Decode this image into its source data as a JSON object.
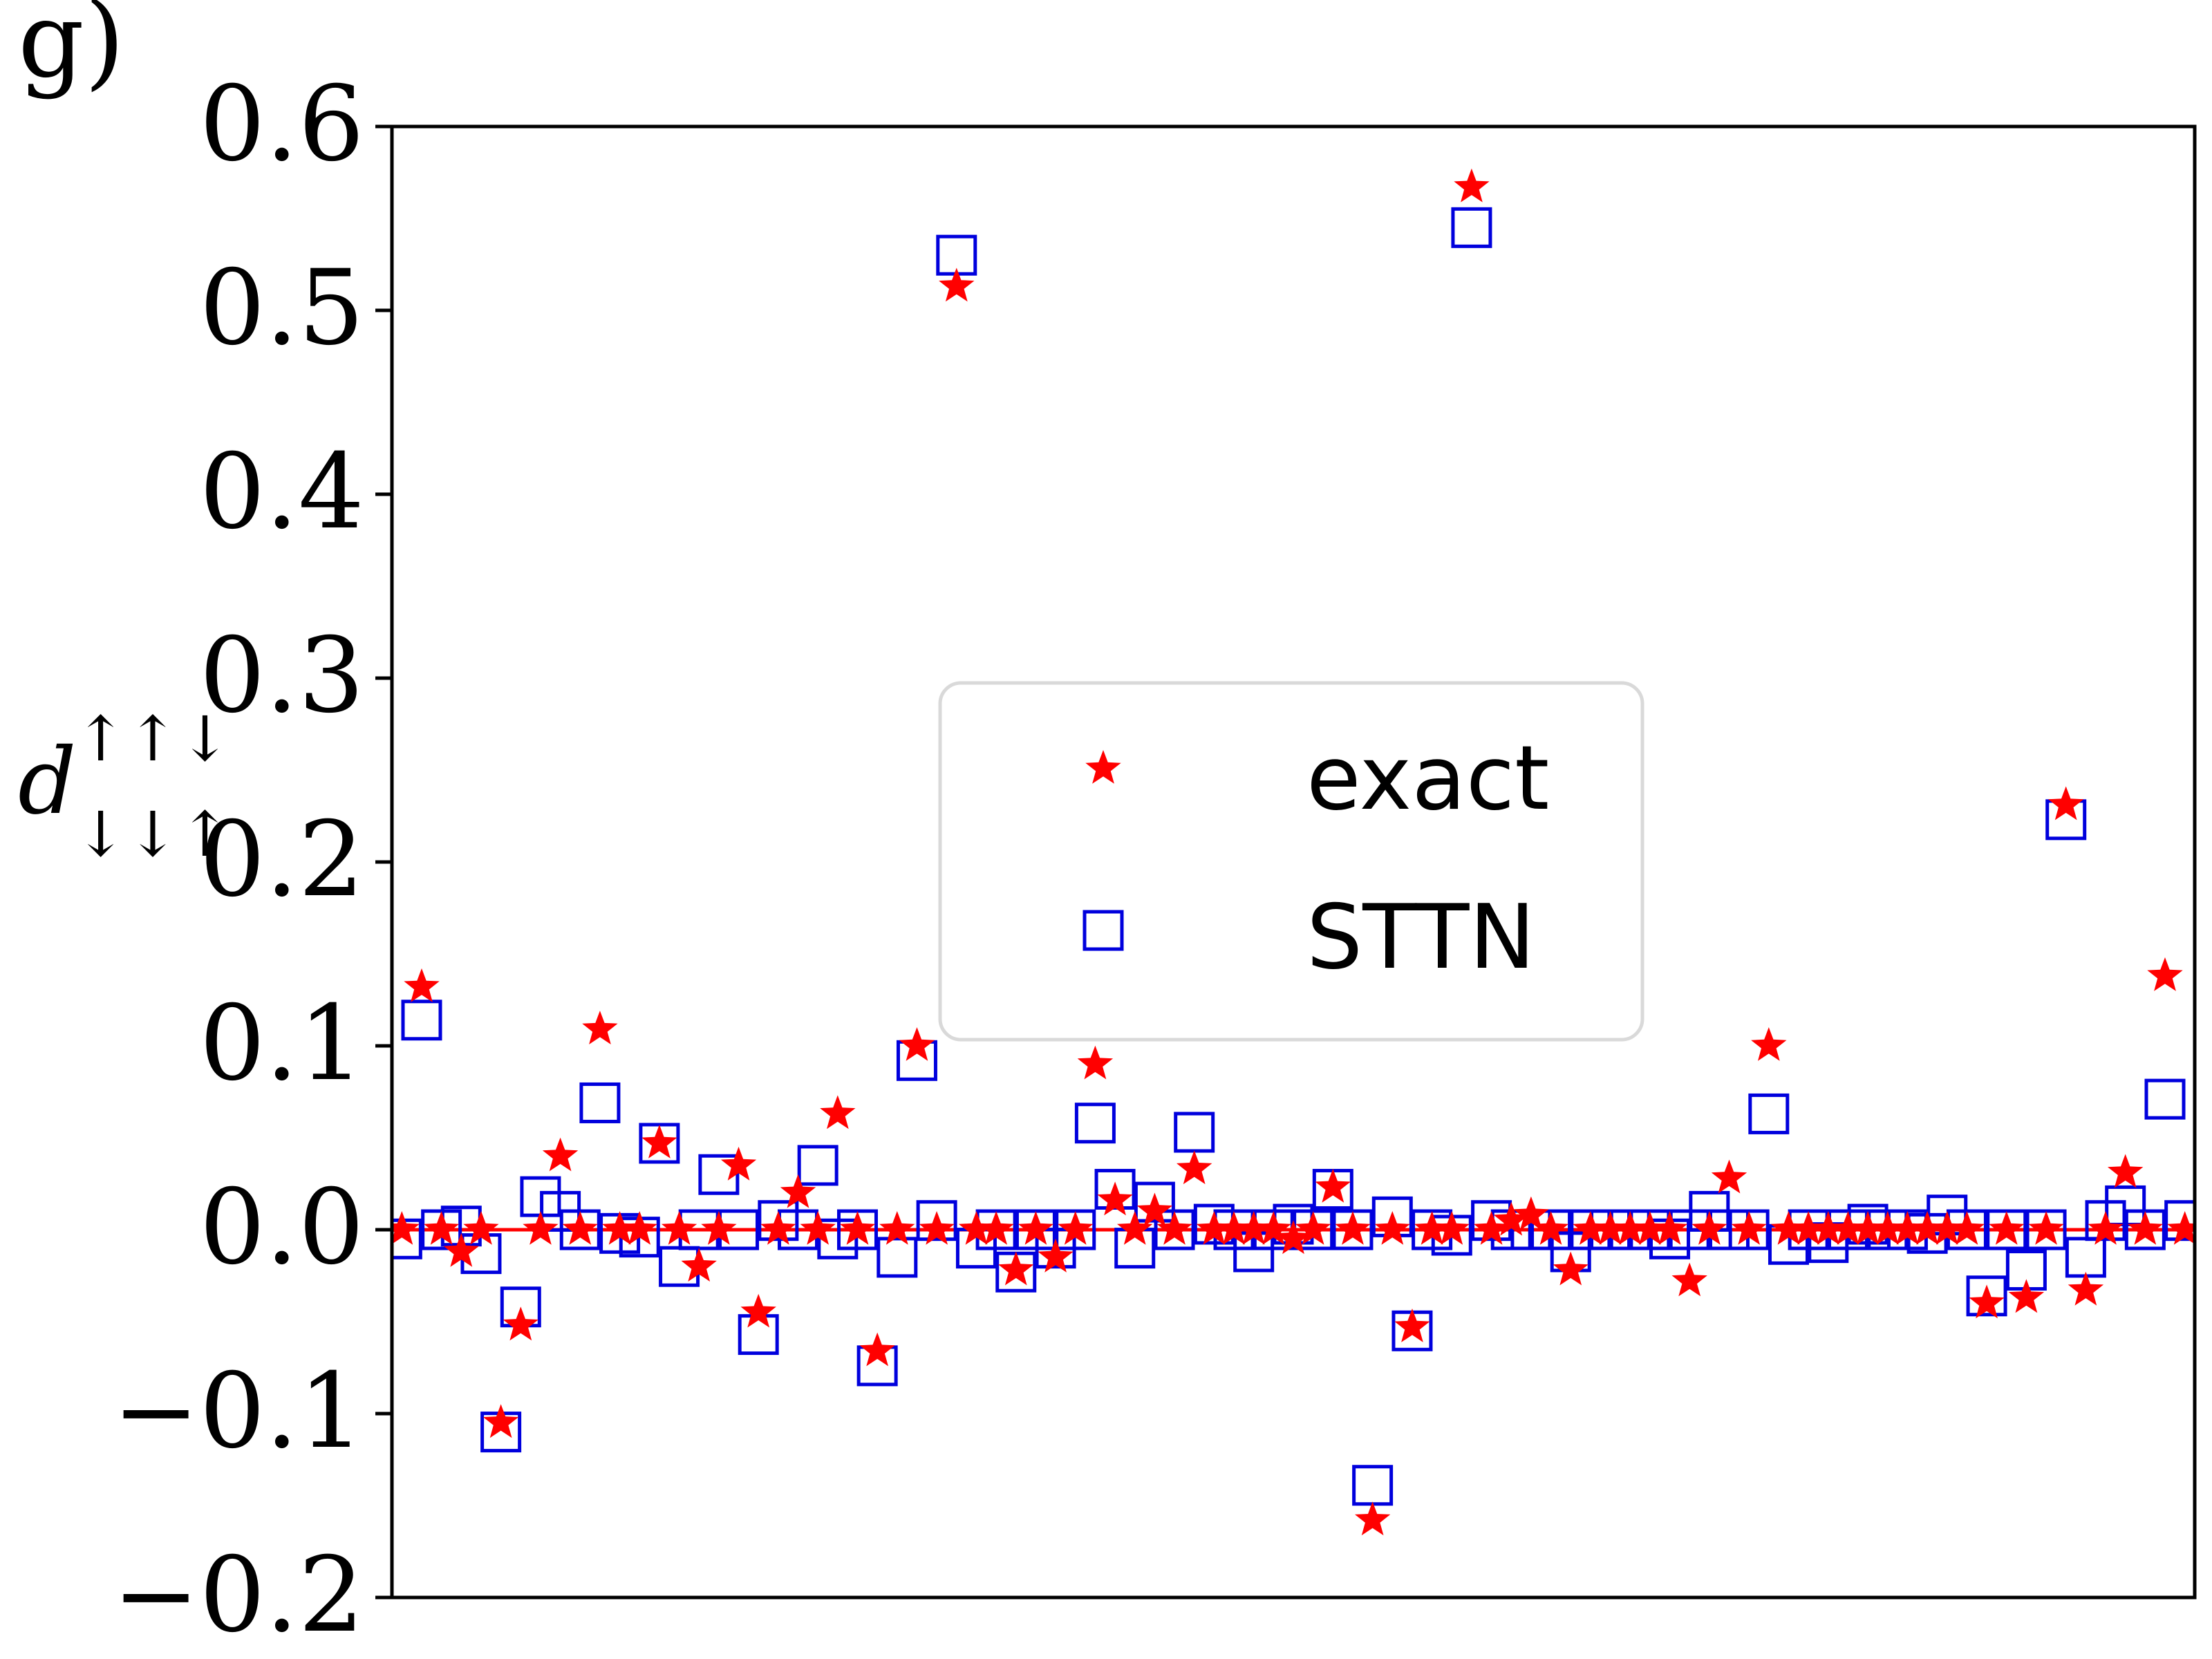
{
  "panel_label": "g)",
  "chart_data": {
    "type": "scatter",
    "title": "",
    "xlabel": "",
    "ylabel": "d",
    "ylabel_sup": "↑↑↓",
    "ylabel_sub": "↓↓↑",
    "ylim": [
      -0.2,
      0.6
    ],
    "yticks": [
      -0.2,
      -0.1,
      0.0,
      0.1,
      0.2,
      0.3,
      0.4,
      0.5,
      0.6
    ],
    "ytick_labels": [
      "−0.2",
      "−0.1",
      "0.0",
      "0.1",
      "0.2",
      "0.3",
      "0.4",
      "0.5",
      "0.6"
    ],
    "xlim": [
      -0.5,
      90.5
    ],
    "grid": false,
    "legend_position": "center",
    "x": [
      0,
      1,
      2,
      3,
      4,
      5,
      6,
      7,
      8,
      9,
      10,
      11,
      12,
      13,
      14,
      15,
      16,
      17,
      18,
      19,
      20,
      21,
      22,
      23,
      24,
      25,
      26,
      27,
      28,
      29,
      30,
      31,
      32,
      33,
      34,
      35,
      36,
      37,
      38,
      39,
      40,
      41,
      42,
      43,
      44,
      45,
      46,
      47,
      48,
      49,
      50,
      51,
      52,
      53,
      54,
      55,
      56,
      57,
      58,
      59,
      60,
      61,
      62,
      63,
      64,
      65,
      66,
      67,
      68,
      69,
      70,
      71,
      72,
      73,
      74,
      75,
      76,
      77,
      78,
      79,
      80,
      81,
      82,
      83,
      84,
      85,
      86,
      87,
      88,
      89,
      90
    ],
    "series": [
      {
        "name": "exact",
        "marker": "star",
        "color": "#ff0000",
        "values": [
          0.0,
          0.132,
          0.0,
          -0.012,
          0.0,
          -0.105,
          -0.052,
          0.0,
          0.04,
          0.0,
          0.109,
          0.0,
          0.0,
          0.047,
          0.0,
          -0.02,
          0.0,
          0.035,
          -0.045,
          0.0,
          0.02,
          0.0,
          0.063,
          0.0,
          -0.066,
          0.0,
          0.1,
          0.0,
          0.513,
          0.0,
          0.0,
          -0.022,
          0.0,
          -0.015,
          0.0,
          0.09,
          0.016,
          0.0,
          0.01,
          0.0,
          0.033,
          0.0,
          0.0,
          0.0,
          0.0,
          -0.005,
          0.0,
          0.023,
          0.0,
          -0.158,
          0.0,
          -0.053,
          0.0,
          0.0,
          0.567,
          0.0,
          0.005,
          0.008,
          0.0,
          -0.022,
          0.0,
          0.0,
          0.0,
          0.0,
          0.0,
          -0.028,
          0.0,
          0.028,
          0.0,
          0.1,
          0.0,
          0.0,
          0.0,
          0.0,
          0.0,
          0.0,
          0.0,
          0.0,
          0.0,
          0.0,
          -0.04,
          0.0,
          -0.037,
          0.0,
          0.231,
          -0.033,
          0.0,
          0.031,
          0.0,
          0.138,
          0.0
        ]
      },
      {
        "name": "STTN",
        "marker": "square",
        "color": "#0000dd",
        "values": [
          -0.005,
          0.114,
          0.0,
          0.002,
          -0.013,
          -0.11,
          -0.042,
          0.018,
          0.01,
          0.0,
          0.069,
          -0.002,
          -0.004,
          0.047,
          -0.02,
          0.0,
          0.03,
          0.0,
          -0.057,
          0.005,
          0.0,
          0.035,
          -0.005,
          0.0,
          -0.074,
          -0.015,
          0.092,
          0.005,
          0.53,
          -0.01,
          0.0,
          -0.023,
          0.0,
          -0.01,
          0.0,
          0.058,
          0.022,
          -0.01,
          0.015,
          0.0,
          0.053,
          0.003,
          0.0,
          -0.012,
          0.0,
          0.003,
          0.0,
          0.022,
          0.0,
          -0.139,
          0.007,
          -0.055,
          0.0,
          -0.003,
          0.545,
          0.005,
          0.0,
          0.0,
          0.0,
          -0.012,
          0.0,
          0.0,
          0.0,
          0.0,
          -0.005,
          0.0,
          0.01,
          0.0,
          0.0,
          0.063,
          -0.008,
          0.0,
          -0.007,
          0.0,
          0.003,
          0.0,
          0.0,
          -0.002,
          0.008,
          0.0,
          -0.036,
          0.0,
          -0.022,
          0.0,
          0.223,
          -0.015,
          0.005,
          0.013,
          0.0,
          0.071,
          0.005
        ]
      }
    ],
    "baseline": {
      "y": 0.0,
      "color": "#ff0000"
    }
  }
}
